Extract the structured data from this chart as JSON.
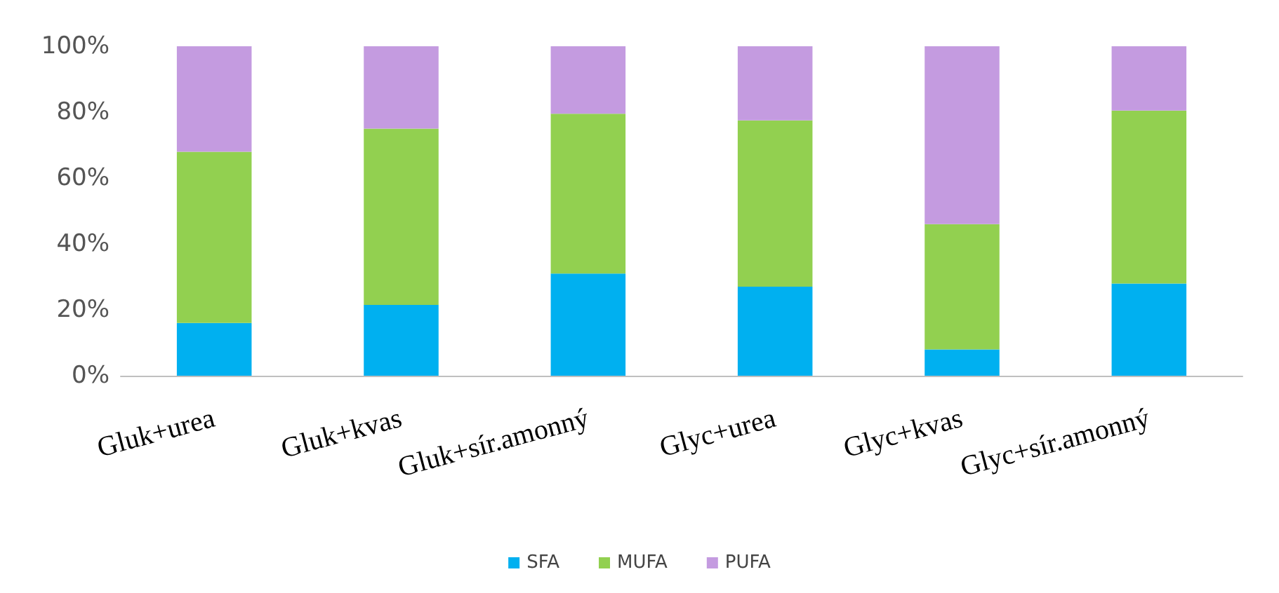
{
  "chart_data": {
    "type": "bar",
    "stacked": true,
    "categories": [
      "Gluk+urea",
      "Gluk+kvas",
      "Gluk+sír.amonný",
      "Glyc+urea",
      "Glyc+kvas",
      "Glyc+sír.amonný"
    ],
    "series": [
      {
        "name": "SFA",
        "color": "#00b0f0",
        "values": [
          16,
          21.5,
          31,
          27,
          8,
          28
        ]
      },
      {
        "name": "MUFA",
        "color": "#92d050",
        "values": [
          52,
          53.5,
          48.5,
          50.5,
          38,
          52.5
        ]
      },
      {
        "name": "PUFA",
        "color": "#c49be0",
        "values": [
          32,
          25,
          20.5,
          22.5,
          54,
          19.5
        ]
      }
    ],
    "ylim": [
      0,
      100
    ],
    "yticks": [
      {
        "value": 0,
        "label": "0%"
      },
      {
        "value": 20,
        "label": "20%"
      },
      {
        "value": 40,
        "label": "40%"
      },
      {
        "value": 60,
        "label": "60%"
      },
      {
        "value": 80,
        "label": "80%"
      },
      {
        "value": 100,
        "label": "100%"
      }
    ],
    "grid": false,
    "legend": "bottom"
  }
}
